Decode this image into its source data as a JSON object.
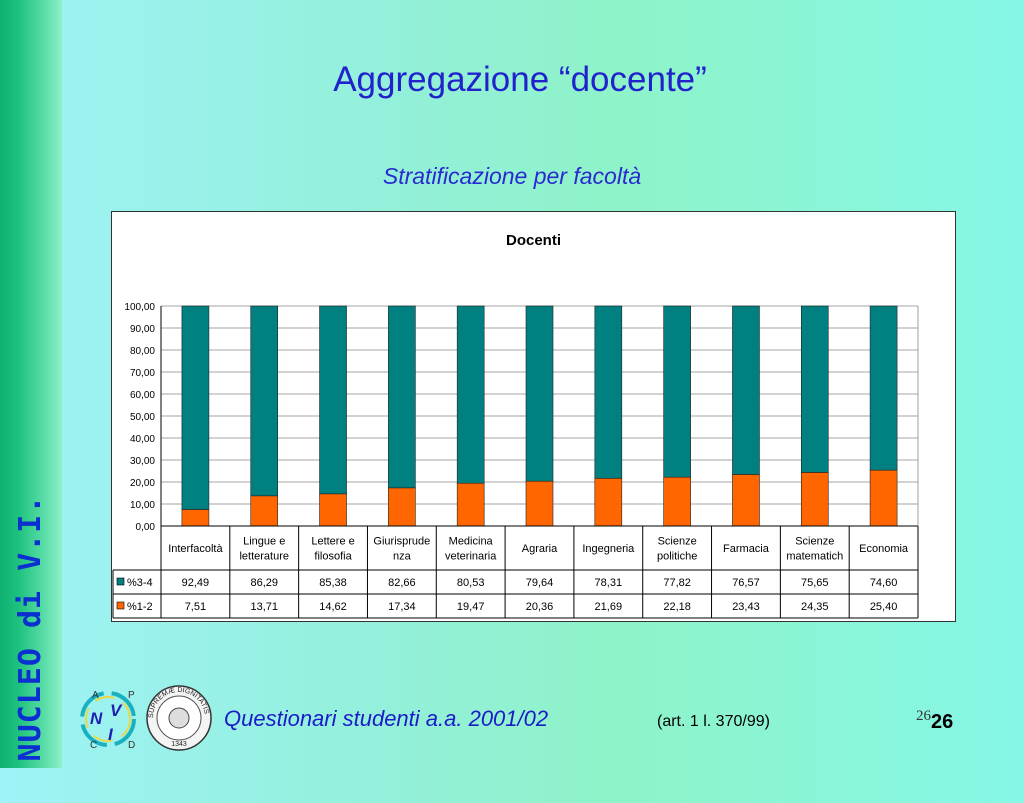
{
  "slide": {
    "title": "Aggregazione “docente”",
    "subtitle": "Stratificazione per facoltà",
    "side_label": "NUCLEO di V.I.",
    "footer": "Questionari  studenti a.a. 2001/02",
    "footer_law": "(art. 1 l. 370/99)",
    "small_number": "26",
    "page_number": "26"
  },
  "logo": {
    "letters": [
      "A",
      "P",
      "N",
      "V",
      "I",
      "C",
      "D"
    ],
    "seal_text": "SUPREMÆ DIGNITATIS",
    "seal_year": "1343"
  },
  "colors": {
    "series_34": "#008080",
    "series_12": "#ff6600",
    "title_blue": "#2222cc"
  },
  "chart_data": {
    "type": "bar",
    "stacked": true,
    "title": "Docenti",
    "categories": [
      "Interfacoltà",
      "Lingue e letterature",
      "Lettere e filosofia",
      "Giurisprudenza",
      "Medicina veterinaria",
      "Agraria",
      "Ingegneria",
      "Scienze politiche",
      "Farmacia",
      "Scienze matematich",
      "Economia"
    ],
    "category_label_lines": [
      [
        "Interfacoltà"
      ],
      [
        "Lingue e",
        "letterature"
      ],
      [
        "Lettere e",
        "filosofia"
      ],
      [
        "Giurisprude",
        "nza"
      ],
      [
        "Medicina",
        "veterinaria"
      ],
      [
        "Agraria"
      ],
      [
        "Ingegneria"
      ],
      [
        "Scienze",
        "politiche"
      ],
      [
        "Farmacia"
      ],
      [
        "Scienze",
        "matematich"
      ],
      [
        "Economia"
      ]
    ],
    "series": [
      {
        "name": "%3-4",
        "color": "#008080",
        "values": [
          92.49,
          86.29,
          85.38,
          82.66,
          80.53,
          79.64,
          78.31,
          77.82,
          76.57,
          75.65,
          74.6
        ],
        "labels": [
          "92,49",
          "86,29",
          "85,38",
          "82,66",
          "80,53",
          "79,64",
          "78,31",
          "77,82",
          "76,57",
          "75,65",
          "74,60"
        ]
      },
      {
        "name": "%1-2",
        "color": "#ff6600",
        "values": [
          7.51,
          13.71,
          14.62,
          17.34,
          19.47,
          20.36,
          21.69,
          22.18,
          23.43,
          24.35,
          25.4
        ],
        "labels": [
          "7,51",
          "13,71",
          "14,62",
          "17,34",
          "19,47",
          "20,36",
          "21,69",
          "22,18",
          "23,43",
          "24,35",
          "25,40"
        ]
      }
    ],
    "ylim": [
      0,
      100
    ],
    "yticks": [
      "0,00",
      "10,00",
      "20,00",
      "30,00",
      "40,00",
      "50,00",
      "60,00",
      "70,00",
      "80,00",
      "90,00",
      "100,00"
    ],
    "grid": true,
    "legend": "data-table"
  }
}
